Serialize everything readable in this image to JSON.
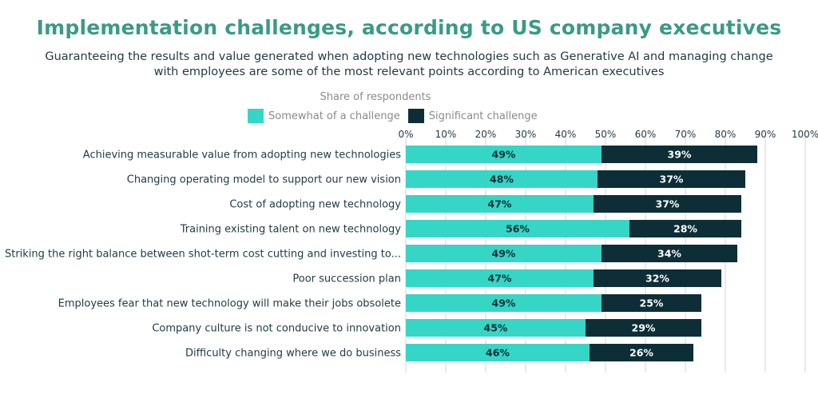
{
  "chart_data": {
    "type": "bar",
    "orientation": "horizontal",
    "stacked": true,
    "title": "Implementation challenges, according to US company executives",
    "subtitle": "Guaranteeing the results and value generated when adopting new technologies such as Generative AI and managing change with employees are some of the most relevant points according to American executives",
    "legend_title": "Share of respondents",
    "legend_position": "top",
    "categories": [
      "Achieving measurable value from adopting new technologies",
      "Changing operating model to support our new vision",
      "Cost of adopting new technology",
      "Training existing talent on new technology",
      "Striking the right balance between shot-term cost cutting and investing to...",
      "Poor succession plan",
      "Employees fear that new technology will make their jobs obsolete",
      "Company culture is not conducive to innovation",
      "Difficulty changing where we do business"
    ],
    "series": [
      {
        "name": "Somewhat of a challenge",
        "color": "#35d6c6",
        "values": [
          49,
          48,
          47,
          56,
          49,
          47,
          49,
          45,
          46
        ],
        "labels": [
          "49%",
          "48%",
          "47%",
          "56%",
          "49%",
          "47%",
          "49%",
          "45%",
          "46%"
        ]
      },
      {
        "name": "Significant challenge",
        "color": "#0d2e36",
        "values": [
          39,
          37,
          37,
          28,
          34,
          32,
          25,
          29,
          26
        ],
        "labels": [
          "39%",
          "37%",
          "37%",
          "28%",
          "34%",
          "32%",
          "25%",
          "29%",
          "26%"
        ]
      }
    ],
    "xlim": [
      0,
      100
    ],
    "xticks": [
      "0%",
      "10%",
      "20%",
      "30%",
      "40%",
      "50%",
      "60%",
      "70%",
      "80%",
      "90%",
      "100%"
    ],
    "grid": true,
    "title_color": "#3a9a86",
    "text_color": "#1f3a44"
  }
}
